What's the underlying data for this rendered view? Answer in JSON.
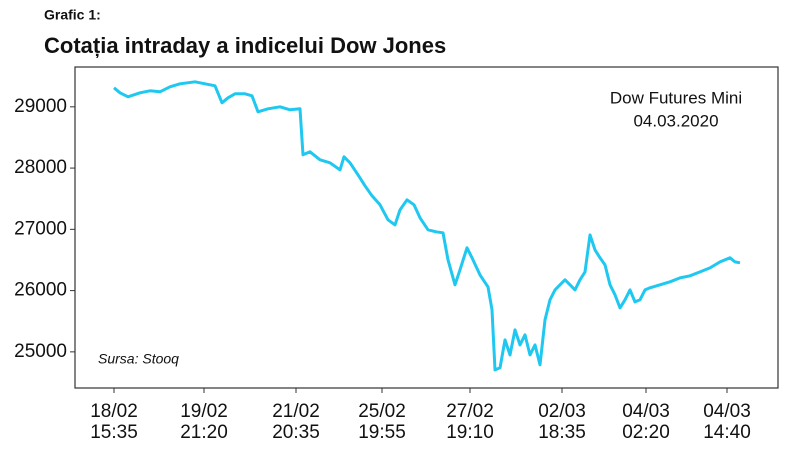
{
  "chart_data": {
    "type": "line",
    "label": "Grafic 1:",
    "title": "Cotația intraday a indicelui Dow Jones",
    "annotations": [
      "Dow Futures Mini",
      "04.03.2020"
    ],
    "source": "Sursa: Stooq",
    "x": [
      0,
      6,
      14,
      26,
      36,
      46,
      56,
      66,
      81,
      91,
      101,
      108,
      114,
      121,
      131,
      138,
      144,
      154,
      166,
      176,
      186,
      189,
      196,
      206,
      216,
      226,
      230,
      236,
      244,
      251,
      258,
      266,
      274,
      281,
      286,
      293,
      300,
      306,
      314,
      322,
      329,
      334,
      341,
      346,
      353,
      358,
      366,
      374,
      378,
      381,
      386,
      391,
      396,
      401,
      406,
      411,
      416,
      421,
      426,
      431,
      436,
      441,
      446,
      451,
      456,
      461,
      466,
      471,
      476,
      481,
      486,
      491,
      496,
      501,
      506,
      511,
      516,
      521,
      526,
      531,
      536,
      546,
      556,
      566,
      576,
      586,
      596,
      606,
      616,
      621,
      626
    ],
    "series": [
      {
        "name": "Dow Futures Mini",
        "color": "#1ec8f0",
        "values": [
          29310,
          29229,
          29163,
          29229,
          29261,
          29245,
          29327,
          29376,
          29408,
          29376,
          29343,
          29065,
          29147,
          29212,
          29212,
          29180,
          28918,
          28967,
          29000,
          28951,
          28967,
          28216,
          28265,
          28135,
          28086,
          27971,
          28184,
          28086,
          27890,
          27710,
          27547,
          27400,
          27155,
          27073,
          27318,
          27482,
          27400,
          27188,
          26992,
          26959,
          26943,
          26502,
          26094,
          26339,
          26698,
          26535,
          26257,
          26061,
          25686,
          24706,
          24739,
          25196,
          24951,
          25359,
          25114,
          25278,
          24951,
          25114,
          24788,
          25522,
          25849,
          26012,
          26094,
          26176,
          26094,
          26012,
          26176,
          26306,
          26910,
          26665,
          26535,
          26420,
          26094,
          25931,
          25718,
          25849,
          26012,
          25816,
          25849,
          26012,
          26045,
          26094,
          26143,
          26208,
          26241,
          26306,
          26371,
          26469,
          26535,
          26469,
          26453
        ]
      }
    ],
    "xlim": [
      -39,
      664
    ],
    "xticks": [
      {
        "value": 0,
        "label": [
          "18/02",
          "15:35"
        ]
      },
      {
        "value": 90,
        "label": [
          "19/02",
          "21:20"
        ]
      },
      {
        "value": 182,
        "label": [
          "21/02",
          "20:35"
        ]
      },
      {
        "value": 268,
        "label": [
          "25/02",
          "19:55"
        ]
      },
      {
        "value": 356,
        "label": [
          "27/02",
          "19:10"
        ]
      },
      {
        "value": 448,
        "label": [
          "02/03",
          "18:35"
        ]
      },
      {
        "value": 532,
        "label": [
          "04/03",
          "02:20"
        ]
      },
      {
        "value": 613,
        "label": [
          "04/03",
          "14:40"
        ]
      }
    ],
    "ylim": [
      24410,
      29650
    ],
    "yticks": [
      25000,
      26000,
      27000,
      28000,
      29000
    ]
  }
}
